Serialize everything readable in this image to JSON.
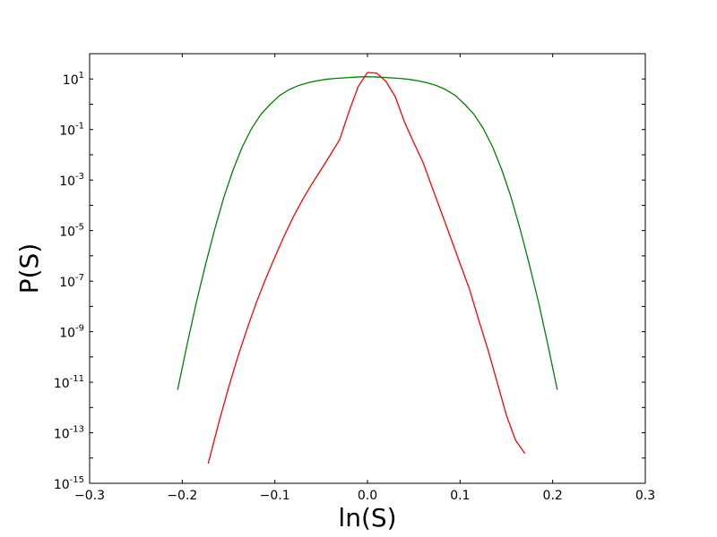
{
  "chart_data": {
    "type": "line",
    "xlabel": "ln(S)",
    "ylabel": "P(S)",
    "xlim": [
      -0.3,
      0.3
    ],
    "ylim": [
      1e-15,
      100
    ],
    "yscale": "log",
    "grid": false,
    "x_ticks": [
      -0.3,
      -0.2,
      -0.1,
      0.0,
      0.1,
      0.2,
      0.3
    ],
    "x_tick_labels": [
      "−0.3",
      "−0.2",
      "−0.1",
      "0.0",
      "0.1",
      "0.2",
      "0.3"
    ],
    "y_ticks": [
      {
        "value": 10.0,
        "base": "10",
        "exp": "1"
      },
      {
        "value": 0.1,
        "base": "10",
        "exp": "-1"
      },
      {
        "value": 0.001,
        "base": "10",
        "exp": "-3"
      },
      {
        "value": 1e-05,
        "base": "10",
        "exp": "-5"
      },
      {
        "value": 1e-07,
        "base": "10",
        "exp": "-7"
      },
      {
        "value": 1e-09,
        "base": "10",
        "exp": "-9"
      },
      {
        "value": 1e-11,
        "base": "10",
        "exp": "-11"
      },
      {
        "value": 1e-13,
        "base": "10",
        "exp": "-13"
      },
      {
        "value": 1e-15,
        "base": "10",
        "exp": "-15"
      }
    ],
    "series": [
      {
        "color": "#008000",
        "x": [
          -0.205,
          -0.195,
          -0.185,
          -0.175,
          -0.165,
          -0.155,
          -0.145,
          -0.135,
          -0.125,
          -0.115,
          -0.105,
          -0.095,
          -0.085,
          -0.075,
          -0.065,
          -0.055,
          -0.045,
          -0.035,
          -0.025,
          -0.015,
          -0.005,
          0.005,
          0.015,
          0.025,
          0.035,
          0.045,
          0.055,
          0.065,
          0.075,
          0.085,
          0.095,
          0.105,
          0.115,
          0.125,
          0.135,
          0.145,
          0.155,
          0.165,
          0.175,
          0.185,
          0.195,
          0.205
        ],
        "y": [
          5e-12,
          2.8e-10,
          1.3e-08,
          4.3e-07,
          1.1e-05,
          0.00021,
          0.0026,
          0.021,
          0.11,
          0.4,
          1.0,
          2.2,
          3.7,
          5.4,
          7.0,
          8.4,
          9.6,
          10.5,
          11.1,
          11.7,
          12.2,
          12.2,
          11.7,
          11.1,
          10.5,
          9.6,
          8.4,
          7.0,
          5.4,
          3.7,
          2.2,
          1.0,
          0.4,
          0.11,
          0.021,
          0.0026,
          0.00021,
          1.1e-05,
          4.3e-07,
          1.3e-08,
          2.8e-10,
          5e-12
        ]
      },
      {
        "color": "#ff0000",
        "x": [
          -0.172,
          -0.16,
          -0.15,
          -0.14,
          -0.13,
          -0.12,
          -0.11,
          -0.1,
          -0.09,
          -0.08,
          -0.07,
          -0.06,
          -0.05,
          -0.04,
          -0.03,
          -0.02,
          -0.01,
          0.0,
          0.01,
          0.02,
          0.03,
          0.04,
          0.05,
          0.06,
          0.07,
          0.08,
          0.09,
          0.1,
          0.11,
          0.12,
          0.13,
          0.14,
          0.15,
          0.16,
          0.17
        ],
        "y": [
          6e-15,
          3e-13,
          6e-12,
          1e-10,
          1.3e-09,
          1.4e-08,
          1.2e-07,
          9e-07,
          6e-06,
          3.5e-05,
          0.00017,
          0.0007,
          0.0026,
          0.01,
          0.04,
          0.5,
          5.0,
          18.0,
          17.0,
          8.0,
          2.0,
          0.2,
          0.03,
          0.005,
          0.0005,
          5e-05,
          5e-06,
          5e-07,
          5e-08,
          3e-09,
          2e-10,
          1e-11,
          5e-13,
          5e-14,
          1.5e-14
        ]
      }
    ]
  }
}
